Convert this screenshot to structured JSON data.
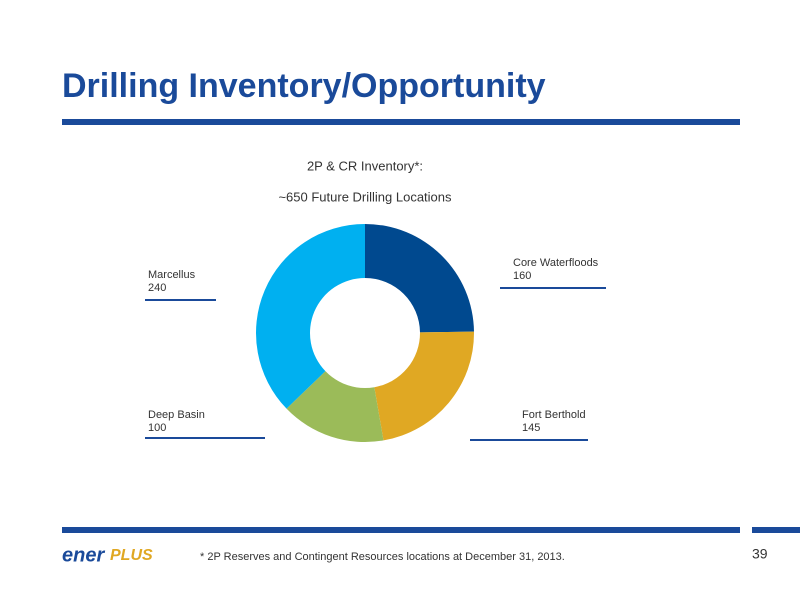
{
  "slide": {
    "title": "Drilling Inventory/Opportunity",
    "footnote": "* 2P Reserves and Contingent Resources locations at December 31, 2013.",
    "page_number": "39",
    "logo": [
      "ener",
      "PLUS"
    ]
  },
  "chart_data": {
    "type": "donut",
    "title": "2P & CR Inventory*:",
    "subtitle": "~650 Future Drilling Locations",
    "categories": [
      "Core Waterfloods",
      "Fort Berthold",
      "Deep Basin",
      "Marcellus"
    ],
    "values": [
      160,
      145,
      100,
      240
    ],
    "colors": [
      "#00498f",
      "#e0a823",
      "#9bbb59",
      "#00b0f0"
    ]
  }
}
